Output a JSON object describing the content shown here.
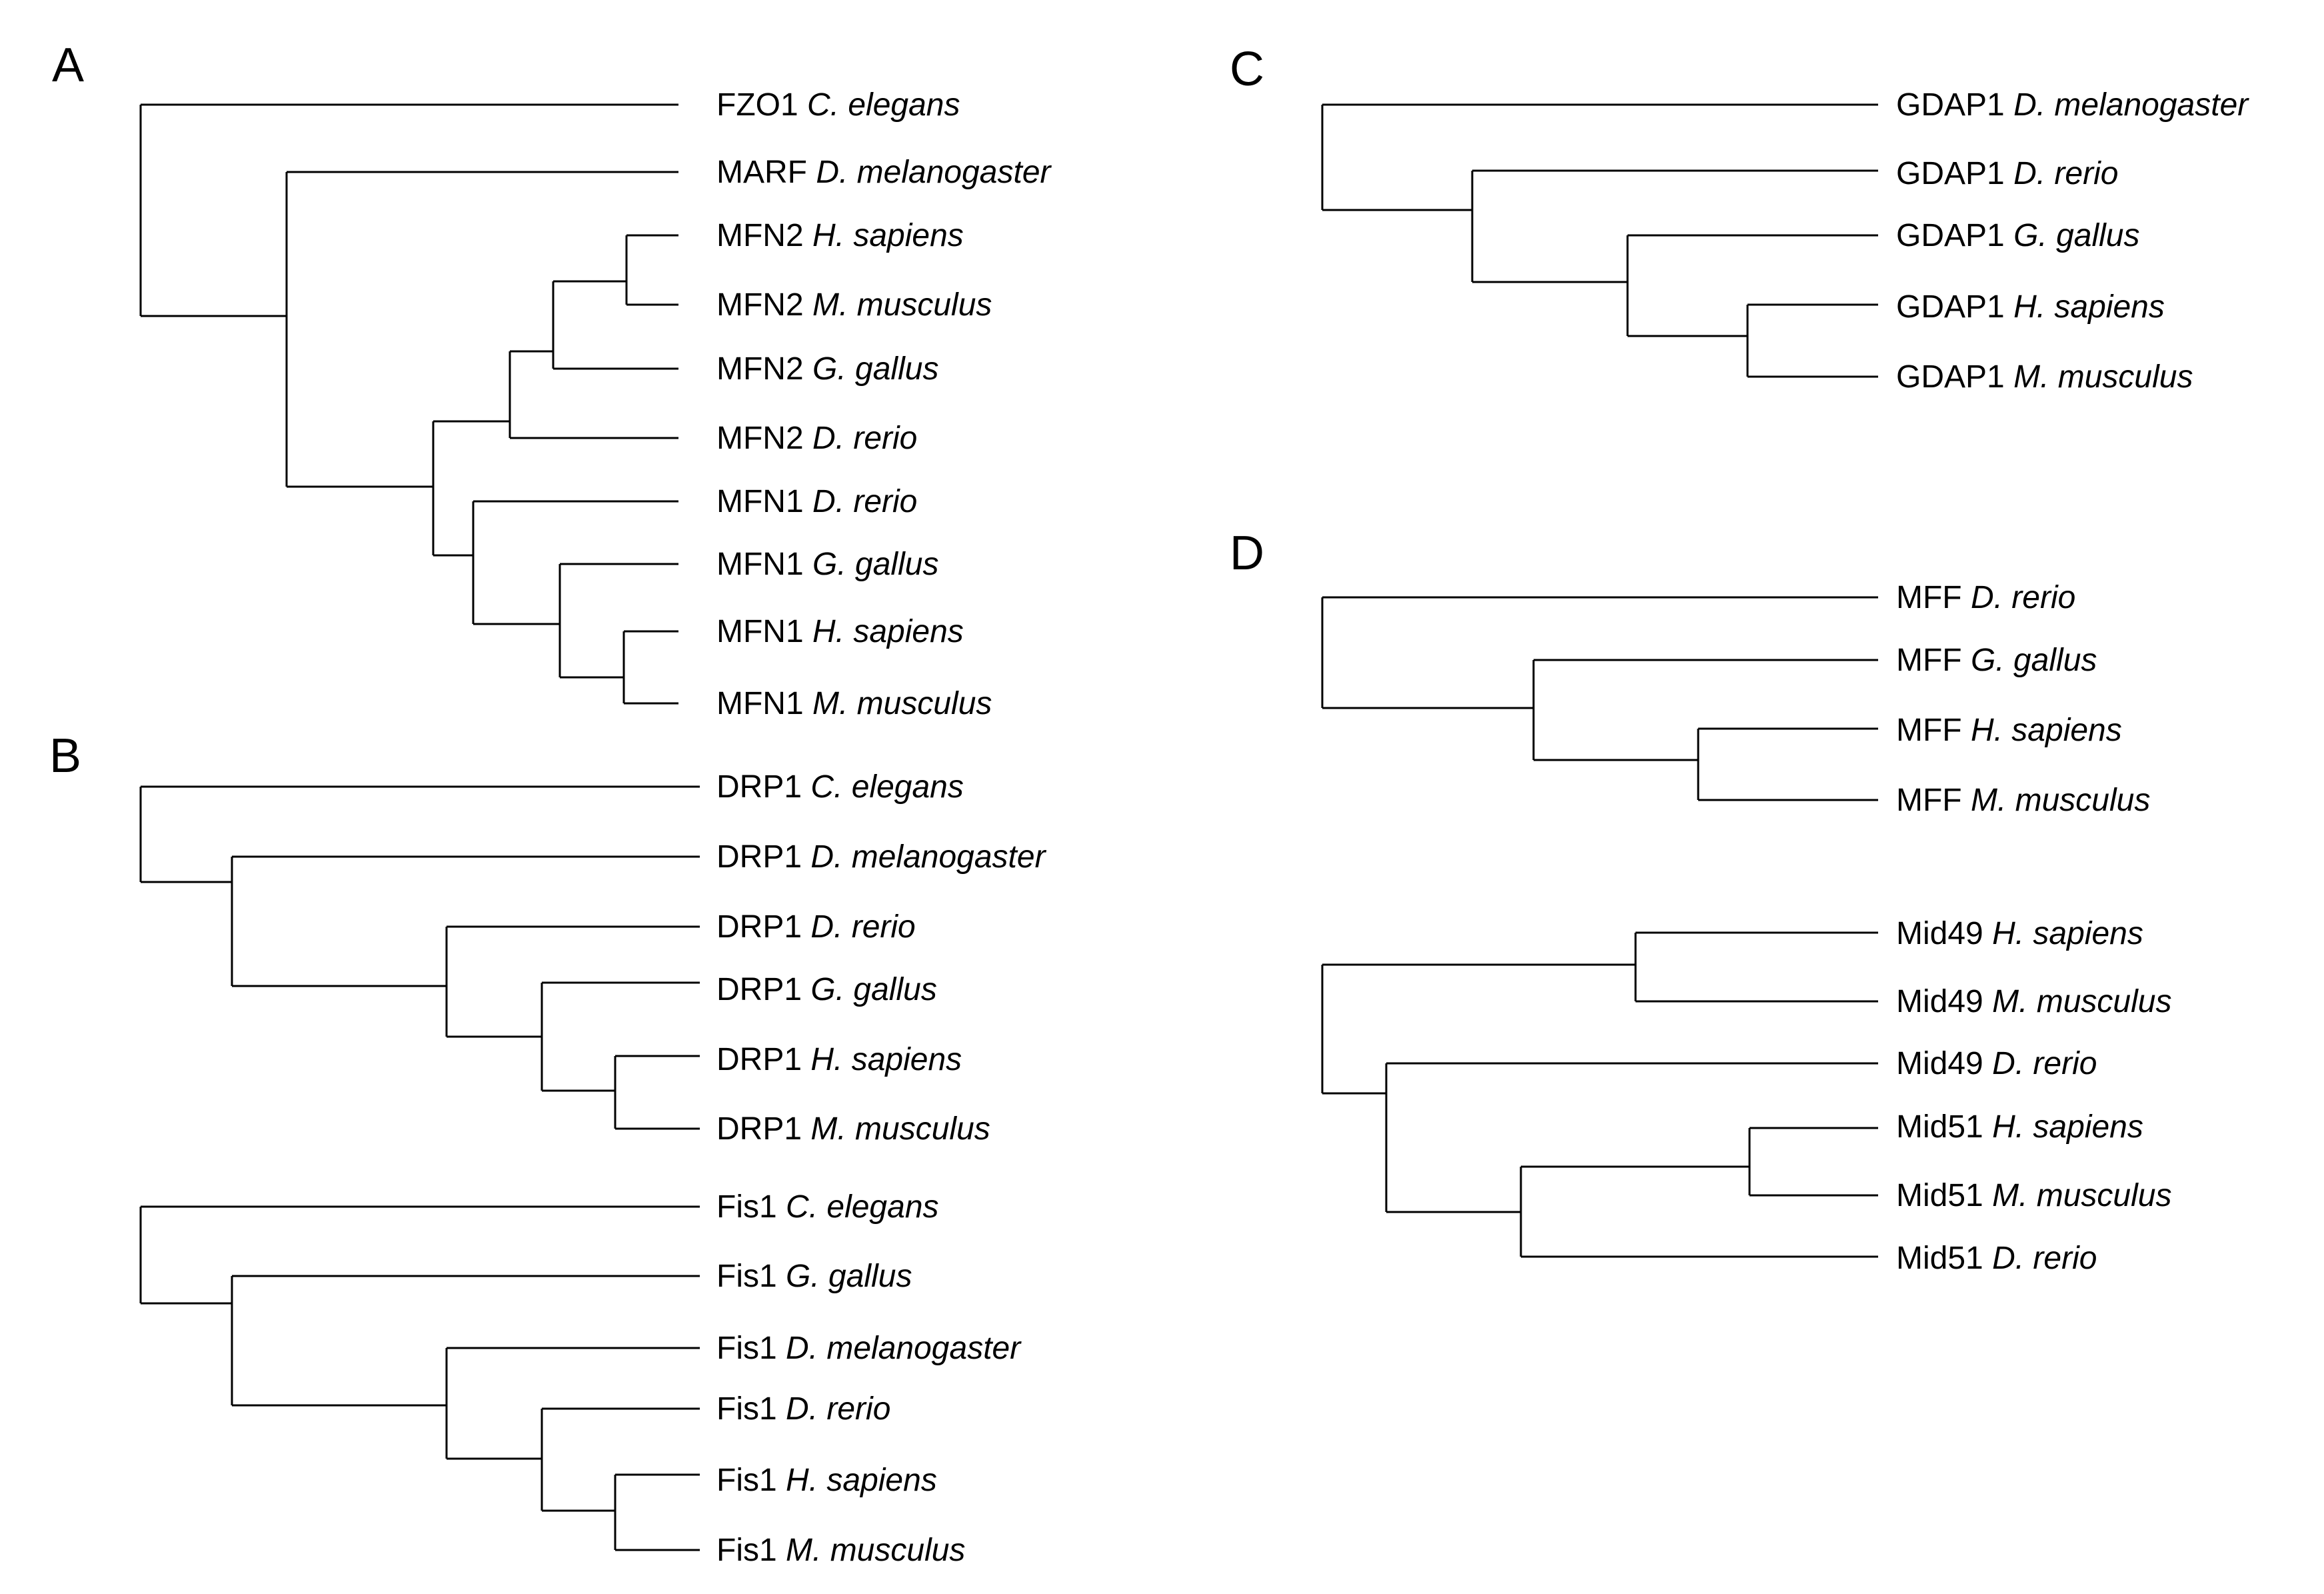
{
  "figure": {
    "line_color": "#000000",
    "background": "#ffffff"
  },
  "panels": [
    {
      "label": "A",
      "trees": [
        {
          "name": "mitofusin",
          "leaves": [
            {
              "gene": "FZO1",
              "species": "C. elegans"
            },
            {
              "gene": "MARF",
              "species": "D. melanogaster"
            },
            {
              "gene": "MFN2",
              "species": "H. sapiens"
            },
            {
              "gene": "MFN2",
              "species": "M. musculus"
            },
            {
              "gene": "MFN2",
              "species": "G. gallus"
            },
            {
              "gene": "MFN2",
              "species": "D. rerio"
            },
            {
              "gene": "MFN1",
              "species": "D. rerio"
            },
            {
              "gene": "MFN1",
              "species": "G. gallus"
            },
            {
              "gene": "MFN1",
              "species": "H. sapiens"
            },
            {
              "gene": "MFN1",
              "species": "M. musculus"
            }
          ]
        }
      ]
    },
    {
      "label": "B",
      "trees": [
        {
          "name": "drp1",
          "leaves": [
            {
              "gene": "DRP1",
              "species": "C. elegans"
            },
            {
              "gene": "DRP1",
              "species": "D. melanogaster"
            },
            {
              "gene": "DRP1",
              "species": "D. rerio"
            },
            {
              "gene": "DRP1",
              "species": "G. gallus"
            },
            {
              "gene": "DRP1",
              "species": "H. sapiens"
            },
            {
              "gene": "DRP1",
              "species": "M. musculus"
            }
          ]
        },
        {
          "name": "fis1",
          "leaves": [
            {
              "gene": "Fis1",
              "species": "C. elegans"
            },
            {
              "gene": "Fis1",
              "species": "G. gallus"
            },
            {
              "gene": "Fis1",
              "species": "D. melanogaster"
            },
            {
              "gene": "Fis1",
              "species": "D. rerio"
            },
            {
              "gene": "Fis1",
              "species": "H. sapiens"
            },
            {
              "gene": "Fis1",
              "species": "M. musculus"
            }
          ]
        }
      ]
    },
    {
      "label": "C",
      "trees": [
        {
          "name": "gdap1",
          "leaves": [
            {
              "gene": "GDAP1",
              "species": "D. melanogaster"
            },
            {
              "gene": "GDAP1",
              "species": "D. rerio"
            },
            {
              "gene": "GDAP1",
              "species": "G. gallus"
            },
            {
              "gene": "GDAP1",
              "species": "H. sapiens"
            },
            {
              "gene": "GDAP1",
              "species": "M. musculus"
            }
          ]
        }
      ]
    },
    {
      "label": "D",
      "trees": [
        {
          "name": "mff",
          "leaves": [
            {
              "gene": "MFF",
              "species": "D. rerio"
            },
            {
              "gene": "MFF",
              "species": "G. gallus"
            },
            {
              "gene": "MFF",
              "species": "H. sapiens"
            },
            {
              "gene": "MFF",
              "species": "M. musculus"
            }
          ]
        },
        {
          "name": "mid49-mid51",
          "leaves": [
            {
              "gene": "Mid49",
              "species": "H. sapiens"
            },
            {
              "gene": "Mid49",
              "species": "M. musculus"
            },
            {
              "gene": "Mid49",
              "species": "D. rerio"
            },
            {
              "gene": "Mid51",
              "species": "H. sapiens"
            },
            {
              "gene": "Mid51",
              "species": "M. musculus"
            },
            {
              "gene": "Mid51",
              "species": "D. rerio"
            }
          ]
        }
      ]
    }
  ]
}
